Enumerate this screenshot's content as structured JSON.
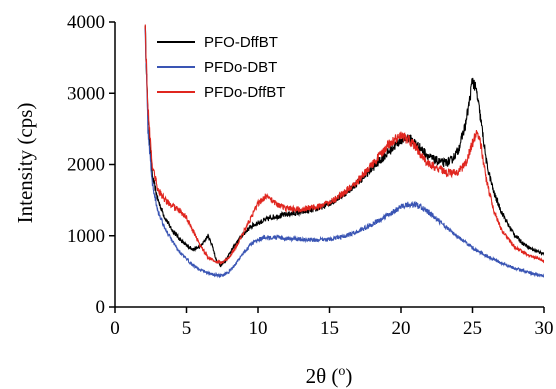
{
  "chart_data": {
    "type": "line",
    "title": "",
    "xlabel": "2θ (",
    "xlabel_sup": "o",
    "xlabel_end": ")",
    "ylabel": "Intensity (cps)",
    "xlim": [
      0,
      30
    ],
    "ylim": [
      0,
      4000
    ],
    "xticks": [
      0,
      5,
      10,
      15,
      20,
      25,
      30
    ],
    "xtick_labels": [
      "0",
      "5",
      "10",
      "15",
      "20",
      "25",
      "30"
    ],
    "yticks": [
      0,
      1000,
      2000,
      3000,
      4000
    ],
    "ytick_labels": [
      "0",
      "1000",
      "2000",
      "3000",
      "4000"
    ],
    "grid": false,
    "legend_position": "top-left",
    "series": [
      {
        "name": "PFO-DffBT",
        "color": "#000000",
        "x": [
          2.1,
          2.3,
          2.6,
          3.0,
          3.5,
          4.0,
          4.5,
          5.0,
          5.5,
          6.0,
          6.5,
          6.8,
          7.1,
          7.4,
          7.7,
          8.0,
          8.5,
          9.0,
          9.5,
          10.0,
          10.5,
          11.0,
          11.5,
          12.0,
          13.0,
          14.0,
          15.0,
          16.0,
          17.0,
          18.0,
          19.0,
          19.5,
          20.0,
          20.5,
          21.0,
          21.5,
          22.0,
          22.5,
          23.0,
          23.5,
          24.0,
          24.5,
          24.8,
          25.0,
          25.3,
          25.6,
          26.0,
          26.5,
          27.0,
          27.5,
          28.0,
          28.5,
          29.0,
          29.5,
          30.0
        ],
        "y": [
          4000,
          2700,
          1850,
          1500,
          1250,
          1080,
          960,
          860,
          810,
          850,
          1000,
          870,
          640,
          590,
          640,
          750,
          900,
          1030,
          1130,
          1180,
          1220,
          1260,
          1280,
          1300,
          1330,
          1370,
          1450,
          1580,
          1750,
          1950,
          2150,
          2250,
          2350,
          2380,
          2300,
          2200,
          2100,
          2050,
          2020,
          2050,
          2200,
          2550,
          2900,
          3200,
          3000,
          2600,
          2000,
          1600,
          1350,
          1150,
          1000,
          900,
          830,
          780,
          750
        ]
      },
      {
        "name": "PFDo-DBT",
        "color": "#3a55b4",
        "x": [
          2.1,
          2.3,
          2.6,
          3.0,
          3.5,
          4.0,
          4.5,
          5.0,
          5.5,
          6.0,
          6.5,
          7.0,
          7.5,
          8.0,
          8.5,
          9.0,
          9.5,
          10.0,
          10.5,
          11.0,
          11.5,
          12.0,
          13.0,
          14.0,
          15.0,
          16.0,
          17.0,
          18.0,
          19.0,
          20.0,
          20.5,
          21.0,
          21.5,
          22.0,
          23.0,
          24.0,
          25.0,
          26.0,
          27.0,
          28.0,
          29.0,
          30.0
        ],
        "y": [
          4000,
          2500,
          1750,
          1350,
          1100,
          920,
          780,
          670,
          580,
          520,
          480,
          450,
          440,
          500,
          620,
          760,
          880,
          950,
          980,
          980,
          970,
          960,
          950,
          940,
          950,
          990,
          1060,
          1160,
          1280,
          1400,
          1440,
          1430,
          1400,
          1320,
          1150,
          980,
          830,
          710,
          620,
          540,
          480,
          430
        ]
      },
      {
        "name": "PFDo-DffBT",
        "color": "#e0261f",
        "x": [
          2.1,
          2.3,
          2.6,
          3.0,
          3.5,
          4.0,
          4.5,
          5.0,
          5.5,
          6.0,
          6.5,
          7.0,
          7.5,
          8.0,
          8.5,
          9.0,
          9.5,
          10.0,
          10.5,
          11.0,
          11.5,
          12.0,
          13.0,
          14.0,
          15.0,
          16.0,
          17.0,
          18.0,
          19.0,
          19.5,
          20.0,
          20.5,
          21.0,
          21.5,
          22.0,
          22.5,
          23.0,
          23.5,
          24.0,
          24.5,
          25.0,
          25.3,
          25.6,
          26.0,
          26.5,
          27.0,
          27.5,
          28.0,
          29.0,
          30.0
        ],
        "y": [
          4000,
          2800,
          2000,
          1650,
          1500,
          1420,
          1350,
          1250,
          1050,
          850,
          700,
          640,
          620,
          700,
          850,
          1050,
          1250,
          1450,
          1550,
          1500,
          1420,
          1380,
          1380,
          1400,
          1470,
          1600,
          1780,
          2000,
          2250,
          2350,
          2400,
          2350,
          2250,
          2100,
          2000,
          1950,
          1900,
          1880,
          1900,
          2000,
          2300,
          2450,
          2250,
          1750,
          1350,
          1100,
          950,
          830,
          720,
          650
        ]
      }
    ]
  }
}
